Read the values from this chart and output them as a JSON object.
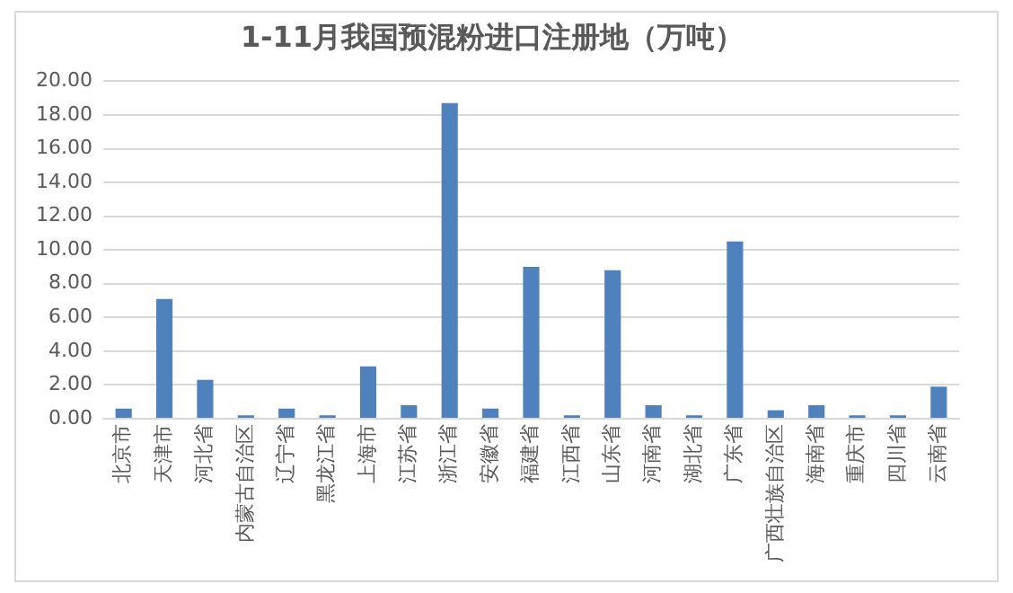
{
  "chart_data": {
    "type": "bar",
    "title": "1-11月我国预混粉进口注册地（万吨）",
    "categories": [
      "北京市",
      "天津市",
      "河北省",
      "内蒙古自治区",
      "辽宁省",
      "黑龙江省",
      "上海市",
      "江苏省",
      "浙江省",
      "安徽省",
      "福建省",
      "江西省",
      "山东省",
      "河南省",
      "湖北省",
      "广东省",
      "广西壮族自治区",
      "海南省",
      "重庆市",
      "四川省",
      "云南省"
    ],
    "values": [
      0.6,
      7.1,
      2.3,
      0.2,
      0.6,
      0.2,
      3.1,
      0.8,
      18.7,
      0.6,
      9.0,
      0.2,
      8.8,
      0.8,
      0.2,
      10.5,
      0.5,
      0.8,
      0.2,
      0.2,
      1.9
    ],
    "color": "#4f81bd",
    "ylim": [
      0,
      20
    ],
    "yticks": [
      {
        "value": 0,
        "label": "0.00"
      },
      {
        "value": 2,
        "label": "2.00"
      },
      {
        "value": 4,
        "label": "4.00"
      },
      {
        "value": 6,
        "label": "6.00"
      },
      {
        "value": 8,
        "label": "8.00"
      },
      {
        "value": 10,
        "label": "10.00"
      },
      {
        "value": 12,
        "label": "12.00"
      },
      {
        "value": 14,
        "label": "14.00"
      },
      {
        "value": 16,
        "label": "16.00"
      },
      {
        "value": 18,
        "label": "18.00"
      },
      {
        "value": 20,
        "label": "20.00"
      }
    ],
    "grid": "y"
  }
}
